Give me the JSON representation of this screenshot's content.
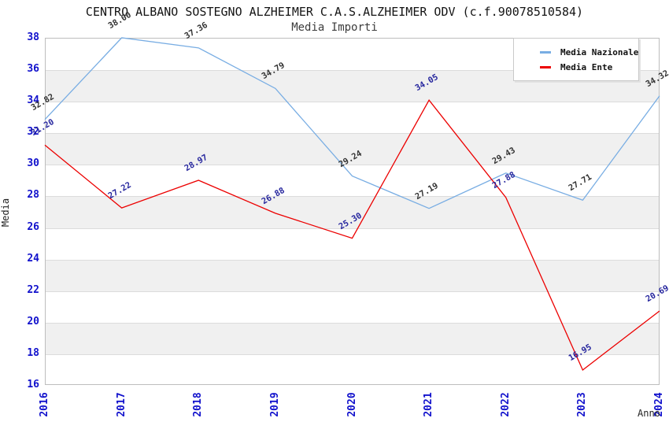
{
  "chart_data": {
    "type": "line",
    "title": "CENTRO ALBANO SOSTEGNO ALZHEIMER C.A.S.ALZHEIMER ODV (c.f.90078510584)",
    "subtitle": "Media Importi",
    "xlabel": "Anno",
    "ylabel": "Media",
    "x": [
      "2016",
      "2017",
      "2018",
      "2019",
      "2020",
      "2021",
      "2022",
      "2023",
      "2024"
    ],
    "ylim": [
      16,
      38
    ],
    "ytick_step": 2,
    "grid": "horizontal gridlines with alternating white/gray bands",
    "legend_position": "top-right",
    "series": [
      {
        "name": "Media Nazionale",
        "color": "#78ade3",
        "label_color": "#333333",
        "values": [
          32.82,
          38.0,
          37.36,
          34.79,
          29.24,
          27.19,
          29.43,
          27.71,
          34.32
        ]
      },
      {
        "name": "Media Ente",
        "color": "#ec0000",
        "label_color": "#26269e",
        "values": [
          31.2,
          27.22,
          28.97,
          26.88,
          25.3,
          34.05,
          27.88,
          16.95,
          20.69
        ]
      }
    ],
    "colors": {
      "tick_label": "#1111cc",
      "band_gray": "#f0f0f0",
      "gridline": "#dcdcdc",
      "plot_border": "#bdbdbd"
    }
  }
}
